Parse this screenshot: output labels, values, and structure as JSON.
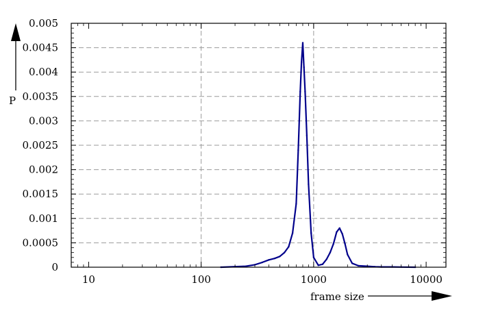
{
  "chart_data": {
    "type": "line",
    "title": "",
    "xlabel": "frame size",
    "ylabel": "P",
    "x_scale": "log",
    "xlim": [
      7,
      15000
    ],
    "ylim": [
      0,
      0.005
    ],
    "x_ticks": [
      10,
      100,
      1000,
      10000
    ],
    "x_tick_labels": [
      "10",
      "100",
      "1000",
      "10000"
    ],
    "y_ticks": [
      0,
      0.0005,
      0.001,
      0.0015,
      0.002,
      0.0025,
      0.003,
      0.0035,
      0.004,
      0.0045,
      0.005
    ],
    "y_tick_labels": [
      "0",
      "0.0005",
      "0.001",
      "0.0015",
      "0.002",
      "0.0025",
      "0.003",
      "0.0035",
      "0.004",
      "0.0045",
      "0.005"
    ],
    "grid": true,
    "legend": "none",
    "series": [
      {
        "color": "#00008b",
        "x": [
          150,
          250,
          300,
          350,
          400,
          450,
          500,
          550,
          600,
          650,
          700,
          730,
          760,
          780,
          800,
          820,
          840,
          870,
          900,
          950,
          1000,
          1100,
          1200,
          1300,
          1400,
          1500,
          1600,
          1700,
          1800,
          1900,
          2000,
          2200,
          2500,
          3000,
          3500,
          4000,
          5000,
          6000,
          8000
        ],
        "y": [
          0.0,
          2e-05,
          5e-05,
          0.0001,
          0.00015,
          0.00018,
          0.00022,
          0.0003,
          0.00042,
          0.0007,
          0.0013,
          0.0024,
          0.0036,
          0.0042,
          0.0046,
          0.0041,
          0.0036,
          0.0027,
          0.0017,
          0.0007,
          0.0002,
          4e-05,
          6e-05,
          0.00016,
          0.0003,
          0.00048,
          0.00072,
          0.0008,
          0.00068,
          0.00048,
          0.00026,
          8e-05,
          3e-05,
          2e-05,
          1e-05,
          5e-06,
          5e-06,
          3e-06,
          0.0
        ]
      }
    ]
  }
}
